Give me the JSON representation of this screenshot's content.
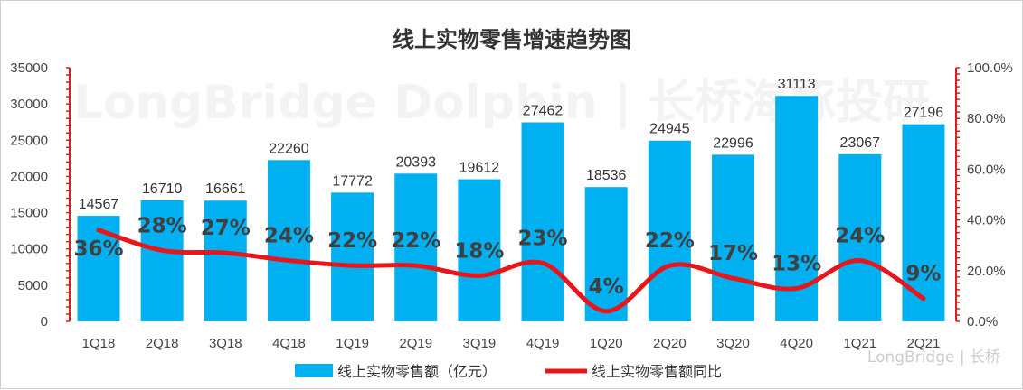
{
  "watermark": "LongBridge Dolphin | 长桥海豚投研",
  "brand_logo": "LongBridge | 长桥",
  "colors": {
    "bar": "#00B0F0",
    "line": "#E8161B",
    "axis_right": "#E8161B",
    "axis_left": "#E8161B"
  },
  "chart_data": {
    "type": "bar",
    "title": "线上实物零售增速趋势图",
    "categories": [
      "1Q18",
      "2Q18",
      "3Q18",
      "4Q18",
      "1Q19",
      "2Q19",
      "3Q19",
      "4Q19",
      "1Q20",
      "2Q20",
      "3Q20",
      "4Q20",
      "1Q21",
      "2Q21"
    ],
    "series": [
      {
        "name": "线上实物零售额（亿元）",
        "type": "bar",
        "axis": "left",
        "values": [
          14567,
          16710,
          16661,
          22260,
          17772,
          20393,
          19612,
          27462,
          18536,
          24945,
          22996,
          31113,
          23067,
          27196
        ]
      },
      {
        "name": "线上实物零售额同比",
        "type": "line",
        "axis": "right",
        "values": [
          36,
          28,
          27,
          24,
          22,
          22,
          18,
          23,
          4,
          22,
          17,
          13,
          24,
          9
        ],
        "labels": [
          "36%",
          "28%",
          "27%",
          "24%",
          "22%",
          "22%",
          "18%",
          "23%",
          "4%",
          "22%",
          "17%",
          "13%",
          "24%",
          "9%"
        ]
      }
    ],
    "y_left": {
      "min": 0,
      "max": 35000,
      "ticks": [
        "0",
        "5000",
        "10000",
        "15000",
        "20000",
        "25000",
        "30000",
        "35000"
      ]
    },
    "y_right": {
      "min": 0,
      "max": 100,
      "ticks": [
        "0.0%",
        "20.0%",
        "40.0%",
        "60.0%",
        "80.0%",
        "100.0%"
      ]
    },
    "legend": "bottom",
    "grid": false
  }
}
